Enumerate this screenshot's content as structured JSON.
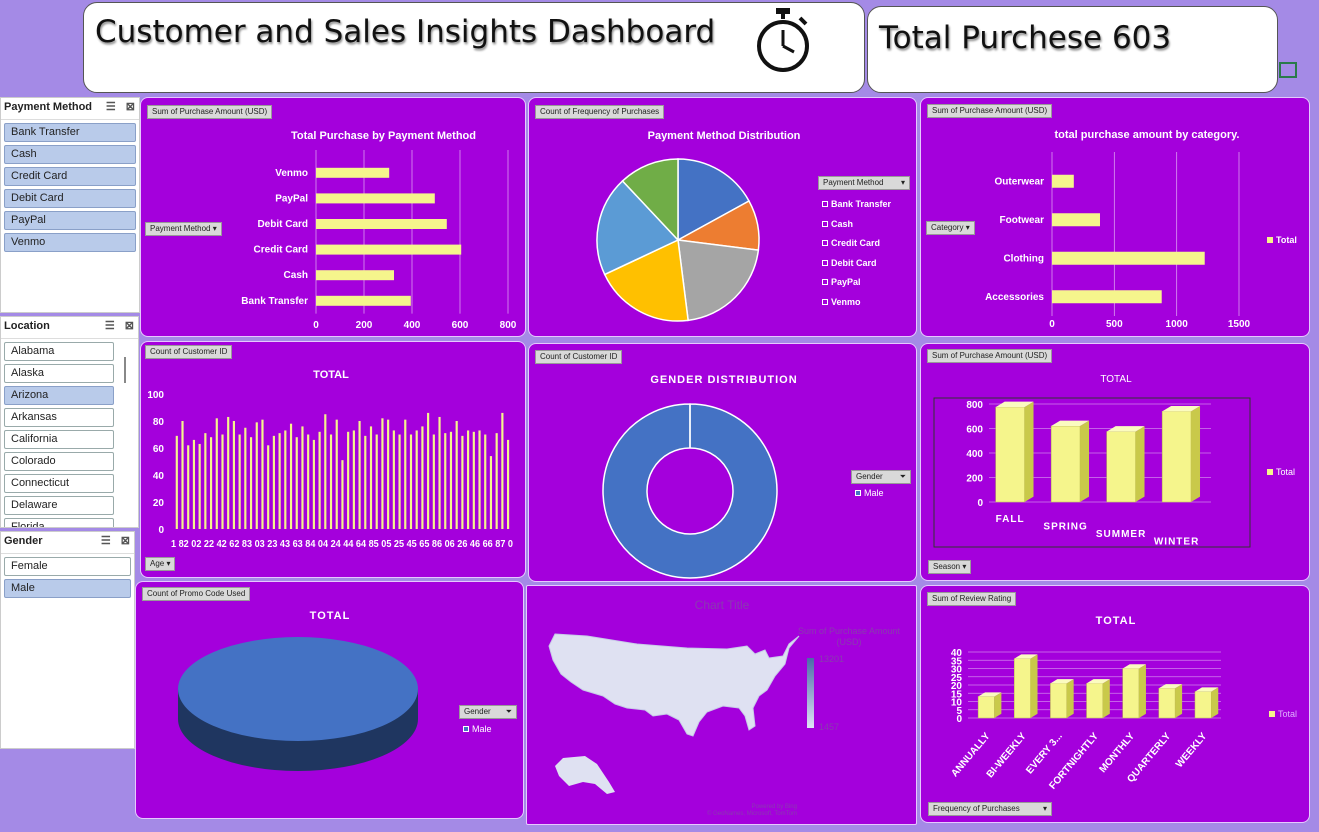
{
  "header": {
    "title": "Customer and Sales Insights Dashboard",
    "total_purchase": "Total Purchese 603",
    "icon": "stopwatch-icon"
  },
  "slicers": {
    "payment": {
      "title": "Payment Method",
      "items": [
        "Bank Transfer",
        "Cash",
        "Credit Card",
        "Debit Card",
        "PayPal",
        "Venmo"
      ]
    },
    "location": {
      "title": "Location",
      "items": [
        "Alabama",
        "Alaska",
        "Arizona",
        "Arkansas",
        "California",
        "Colorado",
        "Connecticut",
        "Delaware",
        "Florida"
      ]
    },
    "gender": {
      "title": "Gender",
      "items": [
        "Female",
        "Male"
      ]
    }
  },
  "colors": {
    "bar": "#f5f58c",
    "panel": "#a400dc",
    "blue": "#4472c4"
  },
  "chart_data": [
    {
      "type": "bar",
      "field_button": "Sum of Purchase Amount (USD)",
      "axis_button": "Payment Method",
      "title": "Total Purchase by Payment Method",
      "categories": [
        "Venmo",
        "PayPal",
        "Debit Card",
        "Credit Card",
        "Cash",
        "Bank Transfer"
      ],
      "values": [
        305,
        495,
        545,
        605,
        325,
        395
      ],
      "xlim": [
        0,
        800
      ],
      "ticks": [
        "0",
        "200",
        "400",
        "600",
        "800"
      ]
    },
    {
      "type": "pie",
      "field_button": "Count of Frequency of Purchases",
      "title": "Payment Method Distribution",
      "legend_button": "Payment Method",
      "labels": [
        "Bank Transfer",
        "Cash",
        "Credit Card",
        "Debit Card",
        "PayPal",
        "Venmo"
      ],
      "values": [
        17,
        10,
        21,
        20,
        20,
        12
      ],
      "colors": [
        "#4472c4",
        "#ed7d31",
        "#a5a5a5",
        "#ffc000",
        "#5b9bd5",
        "#70ad47"
      ]
    },
    {
      "type": "bar",
      "field_button": "Sum of Purchase Amount (USD)",
      "axis_button": "Category",
      "title": "total purchase amount by category.",
      "categories": [
        "Outerwear",
        "Footwear",
        "Clothing",
        "Accessories"
      ],
      "values": [
        175,
        385,
        1225,
        880
      ],
      "xlim": [
        0,
        1500
      ],
      "ticks": [
        "0",
        "500",
        "1000",
        "1500"
      ],
      "legend": "Total"
    },
    {
      "type": "bar",
      "field_button": "Count of Customer ID",
      "axis_button": "Age",
      "title": "TOTAL",
      "ylim": [
        0,
        100
      ],
      "yticks": [
        "0",
        "20",
        "40",
        "60",
        "80",
        "100"
      ],
      "xtick_text": "1 82 02 22 42 62 83 03 23 43 63 84 04 24 44 64 85 05 25 45 65 86 06 26 46 66 87 0",
      "values": [
        69,
        80,
        62,
        66,
        63,
        71,
        68,
        82,
        70,
        83,
        80,
        70,
        75,
        68,
        79,
        81,
        62,
        69,
        71,
        73,
        78,
        68,
        76,
        70,
        66,
        72,
        85,
        70,
        81,
        51,
        72,
        73,
        80,
        69,
        76,
        70,
        82,
        81,
        73,
        70,
        81,
        70,
        73,
        76,
        86,
        70,
        83,
        71,
        72,
        80,
        69,
        73,
        72,
        73,
        70,
        54,
        71,
        86,
        66
      ]
    },
    {
      "type": "pie",
      "field_button": "Count of Customer ID",
      "title": "GENDER DISTRIBUTION",
      "legend_button": "Gender",
      "labels": [
        "Male"
      ],
      "values": [
        100
      ]
    },
    {
      "type": "bar",
      "field_button": "Sum of Purchase Amount (USD)",
      "axis_button": "Season",
      "title": "TOTAL",
      "categories": [
        "FALL",
        "SPRING",
        "SUMMER",
        "WINTER"
      ],
      "values": [
        775,
        620,
        575,
        740
      ],
      "ylim": [
        0,
        800
      ],
      "yticks": [
        "0",
        "200",
        "400",
        "600",
        "800"
      ],
      "legend": "Total"
    },
    {
      "type": "pie",
      "field_button": "Count of Promo Code Used",
      "title": "TOTAL",
      "legend_button": "Gender",
      "labels": [
        "Male"
      ],
      "values": [
        100
      ]
    },
    {
      "type": "heatmap",
      "title": "Chart Title",
      "legend_title": "Sum of Purchase Amount (USD)",
      "legend_max": "13201",
      "legend_min": "1457",
      "credit_1": "Powered by Bing",
      "credit_2": "© GeoNames, Microsoft, TomTom"
    },
    {
      "type": "bar",
      "field_button": "Sum of Review Rating",
      "axis_button": "Frequency of Purchases",
      "title": "TOTAL",
      "categories": [
        "ANNUALLY",
        "BI-WEEKLY",
        "EVERY 3...",
        "FORTNIGHTLY",
        "MONTHLY",
        "QUARTERLY",
        "WEEKLY"
      ],
      "values": [
        13,
        36,
        21,
        21,
        30,
        18,
        16
      ],
      "ylim": [
        0,
        40
      ],
      "yticks": [
        "0",
        "5",
        "10",
        "15",
        "20",
        "25",
        "30",
        "35",
        "40"
      ],
      "legend": "Total"
    }
  ]
}
